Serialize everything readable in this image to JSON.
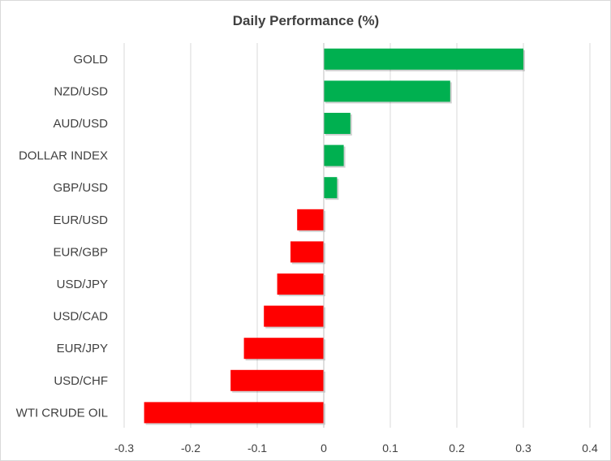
{
  "chart_data": {
    "type": "bar",
    "orientation": "horizontal",
    "title": "Daily Performance (%)",
    "xlabel": "",
    "ylabel": "",
    "xlim": [
      -0.3,
      0.4
    ],
    "ticks": [
      "-0.3",
      "-0.2",
      "-0.1",
      "0",
      "0.1",
      "0.2",
      "0.3",
      "0.4"
    ],
    "tick_values": [
      -0.3,
      -0.2,
      -0.1,
      0,
      0.1,
      0.2,
      0.3,
      0.4
    ],
    "grid": "vertical",
    "legend": "none",
    "categories": [
      "GOLD",
      "NZD/USD",
      "AUD/USD",
      "DOLLAR INDEX",
      "GBP/USD",
      "EUR/USD",
      "EUR/GBP",
      "USD/JPY",
      "USD/CAD",
      "EUR/JPY",
      "USD/CHF",
      "WTI CRUDE OIL"
    ],
    "values": [
      0.3,
      0.19,
      0.04,
      0.03,
      0.02,
      -0.04,
      -0.05,
      -0.07,
      -0.09,
      -0.12,
      -0.14,
      -0.27
    ],
    "colors": {
      "positive": "#00b050",
      "negative": "#ff0000"
    }
  }
}
